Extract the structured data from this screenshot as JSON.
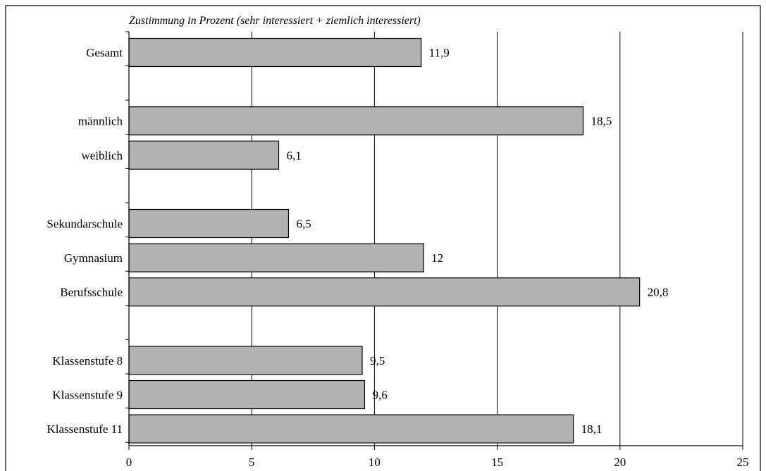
{
  "chart_data": {
    "type": "bar",
    "orientation": "horizontal",
    "title": "Zustimmung in Prozent (sehr interessiert + ziemlich interessiert)",
    "xlabel": "",
    "ylabel": "",
    "xlim": [
      0,
      25
    ],
    "xticks": [
      0,
      5,
      10,
      15,
      20,
      25
    ],
    "xtick_labels": [
      "0",
      "5",
      "10",
      "15",
      "20",
      "25"
    ],
    "grid": "vertical gridlines at major ticks",
    "legend": "none",
    "categories": [
      "Gesamt",
      "",
      "männlich",
      "weiblich",
      "",
      "Sekundarschule",
      "Gymnasium",
      "Berufsschule",
      "",
      "Klassenstufe 8",
      "Klassenstufe 9",
      "Klassenstufe 11"
    ],
    "values": [
      11.9,
      null,
      18.5,
      6.1,
      null,
      6.5,
      12,
      20.8,
      null,
      9.5,
      9.6,
      18.1
    ],
    "value_labels": [
      "11,9",
      "",
      "18,5",
      "6,1",
      "",
      "6,5",
      "12",
      "20,8",
      "",
      "9,5",
      "9,6",
      "18,1"
    ],
    "bar_color": "#b2b2b2",
    "bar_border_color": "#000000"
  }
}
